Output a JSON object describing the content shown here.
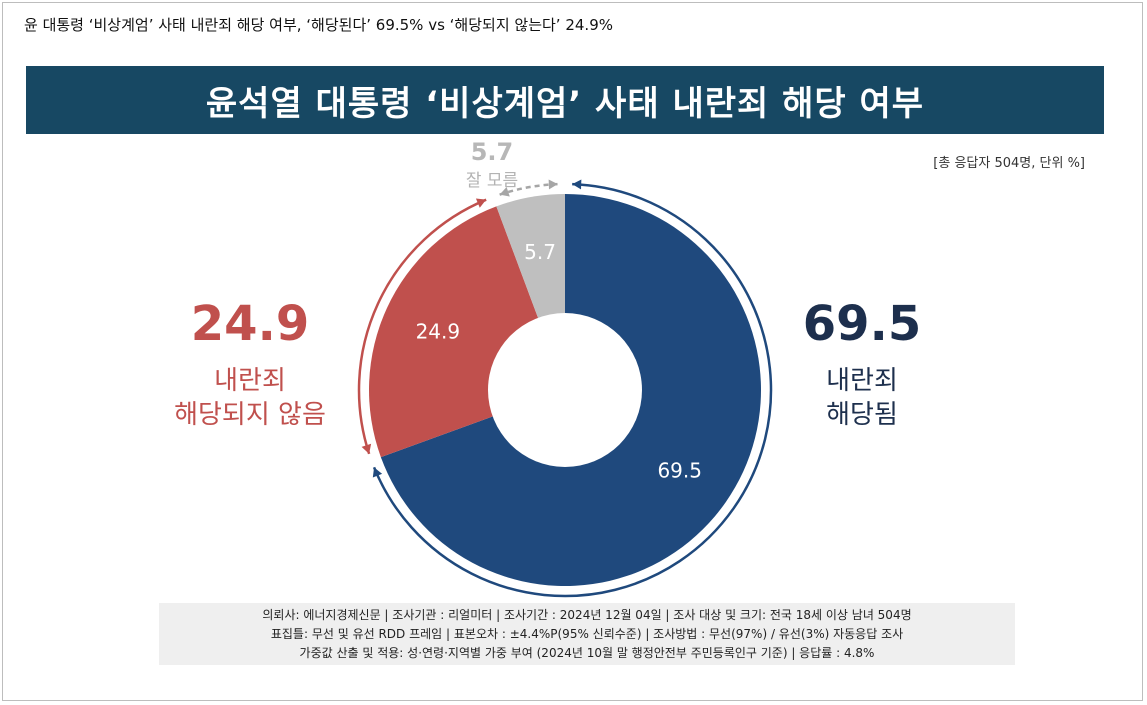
{
  "headline": "윤 대통령 ‘비상계엄’ 사태 내란죄 해당 여부, ‘해당된다’ 69.5% vs ‘해당되지 않는다’ 24.9%",
  "banner_title": "윤석열 대통령 ‘비상계엄’ 사태 내란죄 해당 여부",
  "unit_note": "[총 응답자 504명, 단위 %]",
  "callouts": {
    "yes": {
      "value": "69.5",
      "line1": "내란죄",
      "line2": "해당됨"
    },
    "no": {
      "value": "24.9",
      "line1": "내란죄",
      "line2": "해당되지 않음"
    },
    "dk": {
      "value": "5.7",
      "label": "잘 모름"
    }
  },
  "footer": {
    "line1": "의뢰사: 에너지경제신문 | 조사기관 : 리얼미터  | 조사기간 : 2024년 12월 04일 | 조사 대상 및 크기: 전국 18세 이상 남녀 504명",
    "line2": "표집틀: 무선 및 유선 RDD 프레임 | 표본오차 : ±4.4%P(95% 신뢰수준) | 조사방법 : 무선(97%) / 유선(3%) 자동응답 조사",
    "line3": "가중값 산출 및 적용: 성·연령·지역별 가중 부여 (2024년 10월 말 행정안전부 주민등록인구 기준) | 응답률 : 4.8%"
  },
  "chart_data": {
    "type": "pie",
    "donut": true,
    "title": "윤석열 대통령 ‘비상계엄’ 사태 내란죄 해당 여부",
    "categories": [
      "내란죄 해당됨",
      "내란죄 해당되지 않음",
      "잘 모름"
    ],
    "values": [
      69.5,
      24.9,
      5.7
    ],
    "data_labels": [
      "69.5",
      "24.9",
      "5.7"
    ],
    "colors": [
      "#1f497d",
      "#c0504d",
      "#bfbfbf"
    ]
  }
}
